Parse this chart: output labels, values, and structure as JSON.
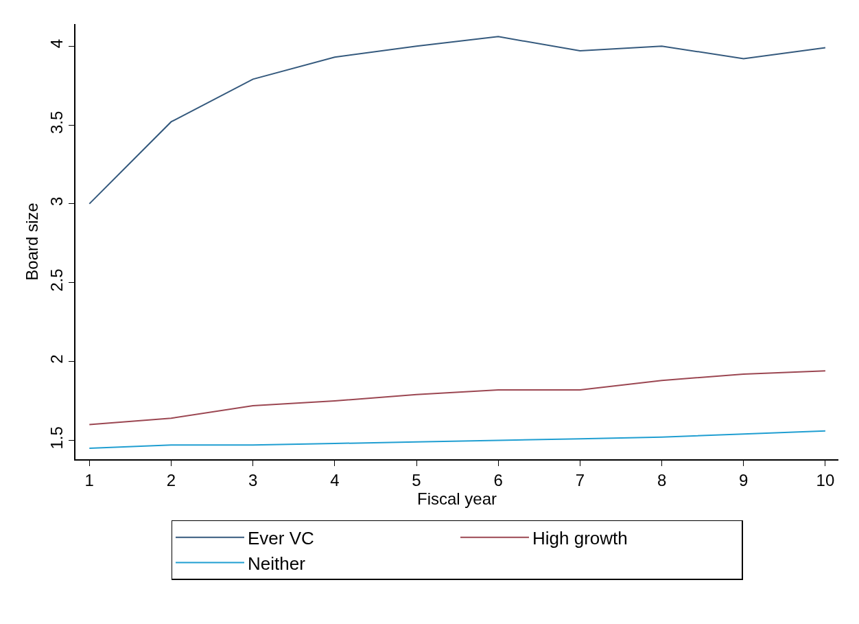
{
  "chart_data": {
    "type": "line",
    "xlabel": "Fiscal year",
    "ylabel": "Board size",
    "x": [
      1,
      2,
      3,
      4,
      5,
      6,
      7,
      8,
      9,
      10
    ],
    "series": [
      {
        "name": "Ever VC",
        "color": "#34597d",
        "values": [
          3.0,
          3.52,
          3.79,
          3.93,
          4.0,
          4.06,
          3.97,
          4.0,
          3.92,
          3.99
        ]
      },
      {
        "name": "High growth",
        "color": "#9b4651",
        "values": [
          1.6,
          1.64,
          1.72,
          1.75,
          1.79,
          1.82,
          1.82,
          1.88,
          1.92,
          1.94
        ]
      },
      {
        "name": "Neither",
        "color": "#1f9ed1",
        "values": [
          1.45,
          1.47,
          1.47,
          1.48,
          1.49,
          1.5,
          1.51,
          1.52,
          1.54,
          1.56
        ]
      }
    ],
    "xlim": [
      0.83,
      10.16
    ],
    "ylim": [
      1.38,
      4.14
    ],
    "xticks": [
      1,
      2,
      3,
      4,
      5,
      6,
      7,
      8,
      9,
      10
    ],
    "yticks": [
      {
        "value": 1.5,
        "label": "1.5"
      },
      2,
      {
        "value": 2.5,
        "label": "2.5"
      },
      3,
      {
        "value": 3.5,
        "label": "3.5"
      },
      4
    ],
    "legend": "bottom",
    "marker": "none",
    "line_style": "solid"
  }
}
